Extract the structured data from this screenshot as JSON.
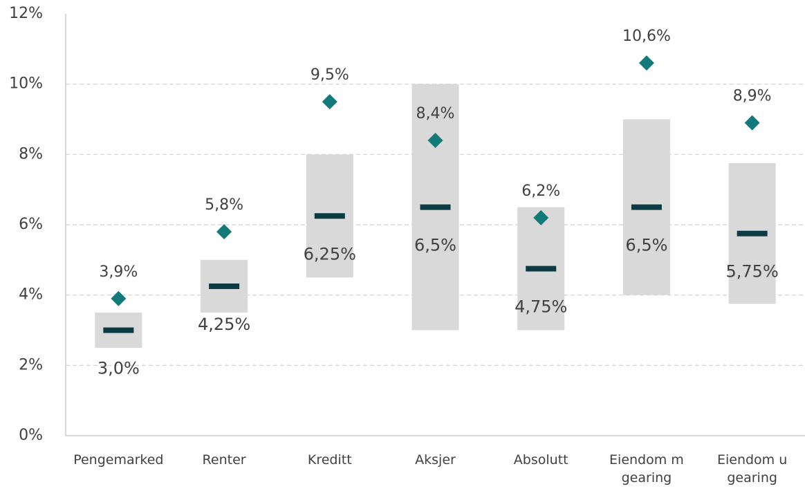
{
  "chart_data": {
    "type": "range",
    "categories": [
      "Pengemarked",
      "Renter",
      "Kreditt",
      "Aksjer",
      "Absolutt",
      "Eiendom m gearing",
      "Eiendom u gearing"
    ],
    "range_low": [
      2.5,
      3.5,
      4.5,
      3.0,
      3.0,
      4.0,
      3.75
    ],
    "range_high": [
      3.5,
      5.0,
      8.0,
      10.0,
      6.5,
      9.0,
      7.75
    ],
    "values": [
      3.0,
      4.25,
      6.25,
      6.5,
      4.75,
      6.5,
      5.75
    ],
    "value_labels": [
      "3,0%",
      "4,25%",
      "6,25%",
      "6,5%",
      "4,75%",
      "6,5%",
      "5,75%"
    ],
    "points": [
      3.9,
      5.8,
      9.5,
      8.4,
      6.2,
      10.6,
      8.9
    ],
    "point_labels": [
      "3,9%",
      "5,8%",
      "9,5%",
      "8,4%",
      "6,2%",
      "10,6%",
      "8,9%"
    ],
    "range_color": "#d9d9d9",
    "median_color": "#0d3b44",
    "point_color": "#127a78",
    "ylim": [
      0,
      12
    ],
    "yticks": [
      {
        "value": 0,
        "label": "0%"
      },
      {
        "value": 2,
        "label": "2%"
      },
      {
        "value": 4,
        "label": "4%"
      },
      {
        "value": 6,
        "label": "6%"
      },
      {
        "value": 8,
        "label": "8%"
      },
      {
        "value": 10,
        "label": "10%"
      },
      {
        "value": 12,
        "label": "12%"
      }
    ],
    "grid": true
  }
}
